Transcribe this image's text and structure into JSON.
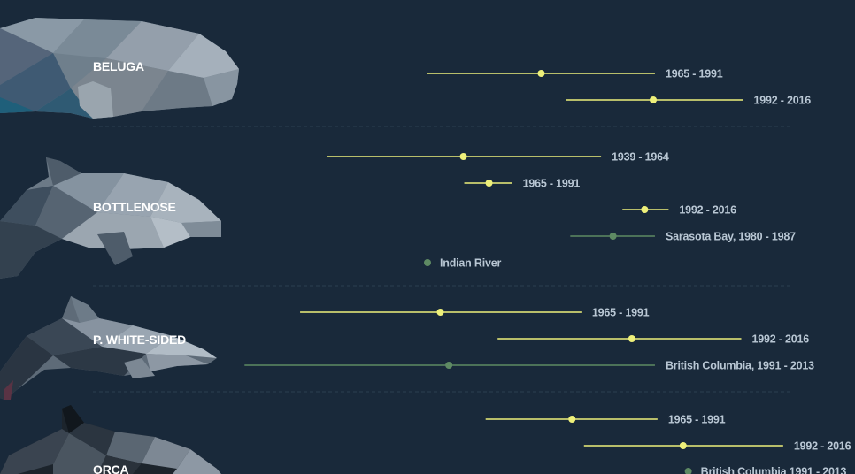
{
  "colors": {
    "background": "#19293a",
    "captivity": "#eef07a",
    "wild": "#5e8a63",
    "label": "#b9c7d4",
    "species_label": "#ffffff",
    "divider": "#2c3e50"
  },
  "chart_data": {
    "type": "range-dot",
    "groups": [
      {
        "species": "BELUGA",
        "icon": "beluga-whale-icon",
        "rows": [
          {
            "label": "1965 - 1991",
            "kind": "captivity",
            "x_low": 0.5,
            "x_mid": 0.633,
            "x_high": 0.766
          },
          {
            "label": "1992 - 2016",
            "kind": "captivity",
            "x_low": 0.662,
            "x_mid": 0.764,
            "x_high": 0.869
          }
        ]
      },
      {
        "species": "BOTTLENOSE",
        "icon": "bottlenose-dolphin-icon",
        "rows": [
          {
            "label": "1939 - 1964",
            "kind": "captivity",
            "x_low": 0.383,
            "x_mid": 0.542,
            "x_high": 0.703
          },
          {
            "label": "1965 - 1991",
            "kind": "captivity",
            "x_low": 0.543,
            "x_mid": 0.572,
            "x_high": 0.599
          },
          {
            "label": "1992 - 2016",
            "kind": "captivity",
            "x_low": 0.728,
            "x_mid": 0.754,
            "x_high": 0.782
          },
          {
            "label": "Sarasota Bay, 1980 - 1987",
            "kind": "wild",
            "x_low": 0.667,
            "x_mid": 0.717,
            "x_high": 0.766
          },
          {
            "label": "Indian River",
            "kind": "wild",
            "x_low": null,
            "x_mid": 0.5,
            "x_high": null
          }
        ]
      },
      {
        "species": "P. WHITE-SIDED",
        "icon": "pacific-white-sided-dolphin-icon",
        "rows": [
          {
            "label": "1965 - 1991",
            "kind": "captivity",
            "x_low": 0.351,
            "x_mid": 0.515,
            "x_high": 0.68
          },
          {
            "label": "1992 - 2016",
            "kind": "captivity",
            "x_low": 0.582,
            "x_mid": 0.739,
            "x_high": 0.867
          },
          {
            "label": "British Columbia, 1991 - 2013",
            "kind": "wild",
            "x_low": 0.286,
            "x_mid": 0.525,
            "x_high": 0.766
          }
        ]
      },
      {
        "species": "ORCA",
        "icon": "orca-whale-icon",
        "rows": [
          {
            "label": "1965 - 1991",
            "kind": "captivity",
            "x_low": 0.568,
            "x_mid": 0.669,
            "x_high": 0.769
          },
          {
            "label": "1992 - 2016",
            "kind": "captivity",
            "x_low": 0.683,
            "x_mid": 0.799,
            "x_high": 0.916
          },
          {
            "label": "British Columbia 1991 - 2013",
            "kind": "wild",
            "x_low": null,
            "x_mid": 0.805,
            "x_high": null
          }
        ]
      }
    ]
  }
}
